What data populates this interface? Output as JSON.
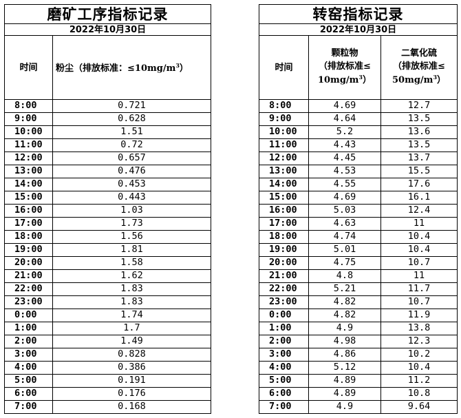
{
  "left": {
    "title": "磨矿工序指标记录",
    "date": "2022年10月30日",
    "header_time": "时间",
    "header_dust": "粉尘（排放标准：≤10mg/m",
    "header_dust_sup": "3",
    "header_dust_close": "）",
    "rows": [
      {
        "time": "8:00",
        "dust": "0.721"
      },
      {
        "time": "9:00",
        "dust": "0.628"
      },
      {
        "time": "10:00",
        "dust": "1.51"
      },
      {
        "time": "11:00",
        "dust": "0.72"
      },
      {
        "time": "12:00",
        "dust": "0.657"
      },
      {
        "time": "13:00",
        "dust": "0.476"
      },
      {
        "time": "14:00",
        "dust": "0.453"
      },
      {
        "time": "15:00",
        "dust": "0.443"
      },
      {
        "time": "16:00",
        "dust": "1.03"
      },
      {
        "time": "17:00",
        "dust": "1.73"
      },
      {
        "time": "18:00",
        "dust": "1.56"
      },
      {
        "time": "19:00",
        "dust": "1.81"
      },
      {
        "time": "20:00",
        "dust": "1.58"
      },
      {
        "time": "21:00",
        "dust": "1.62"
      },
      {
        "time": "22:00",
        "dust": "1.83"
      },
      {
        "time": "23:00",
        "dust": "1.83"
      },
      {
        "time": "0:00",
        "dust": "1.74"
      },
      {
        "time": "1:00",
        "dust": "1.7"
      },
      {
        "time": "2:00",
        "dust": "1.49"
      },
      {
        "time": "3:00",
        "dust": "0.828"
      },
      {
        "time": "4:00",
        "dust": "0.386"
      },
      {
        "time": "5:00",
        "dust": "0.191"
      },
      {
        "time": "6:00",
        "dust": "0.176"
      },
      {
        "time": "7:00",
        "dust": "0.168"
      }
    ]
  },
  "right": {
    "title": "转窑指标记录",
    "date": "2022年10月30日",
    "header_time": "时间",
    "header_pm_l1": "颗粒物",
    "header_pm_l2": "（排放标准≤",
    "header_pm_l3": "10mg/m",
    "header_pm_sup": "3",
    "header_pm_close": "）",
    "header_so2_l1": "二氧化硫",
    "header_so2_l2": "（排放标准≤",
    "header_so2_l3": "50mg/m",
    "header_so2_sup": "3",
    "header_so2_close": "）",
    "rows": [
      {
        "time": "8:00",
        "pm": "4.69",
        "so2": "12.7"
      },
      {
        "time": "9:00",
        "pm": "4.64",
        "so2": "13.5"
      },
      {
        "time": "10:00",
        "pm": "5.2",
        "so2": "13.6"
      },
      {
        "time": "11:00",
        "pm": "4.43",
        "so2": "13.5"
      },
      {
        "time": "12:00",
        "pm": "4.45",
        "so2": "13.7"
      },
      {
        "time": "13:00",
        "pm": "4.53",
        "so2": "15.5"
      },
      {
        "time": "14:00",
        "pm": "4.55",
        "so2": "17.6"
      },
      {
        "time": "15:00",
        "pm": "4.69",
        "so2": "16.1"
      },
      {
        "time": "16:00",
        "pm": "5.03",
        "so2": "12.4"
      },
      {
        "time": "17:00",
        "pm": "4.63",
        "so2": "11"
      },
      {
        "time": "18:00",
        "pm": "4.74",
        "so2": "10.4"
      },
      {
        "time": "19:00",
        "pm": "5.01",
        "so2": "10.4"
      },
      {
        "time": "20:00",
        "pm": "4.75",
        "so2": "10.7"
      },
      {
        "time": "21:00",
        "pm": "4.8",
        "so2": "11"
      },
      {
        "time": "22:00",
        "pm": "5.21",
        "so2": "11.7"
      },
      {
        "time": "23:00",
        "pm": "4.82",
        "so2": "10.7"
      },
      {
        "time": "0:00",
        "pm": "4.82",
        "so2": "11.9"
      },
      {
        "time": "1:00",
        "pm": "4.9",
        "so2": "13.8"
      },
      {
        "time": "2:00",
        "pm": "4.98",
        "so2": "12.3"
      },
      {
        "time": "3:00",
        "pm": "4.86",
        "so2": "10.2"
      },
      {
        "time": "4:00",
        "pm": "5.12",
        "so2": "10.4"
      },
      {
        "time": "5:00",
        "pm": "4.89",
        "so2": "11.2"
      },
      {
        "time": "6:00",
        "pm": "4.89",
        "so2": "10.8"
      },
      {
        "time": "7:00",
        "pm": "4.9",
        "so2": "9.64"
      }
    ]
  }
}
